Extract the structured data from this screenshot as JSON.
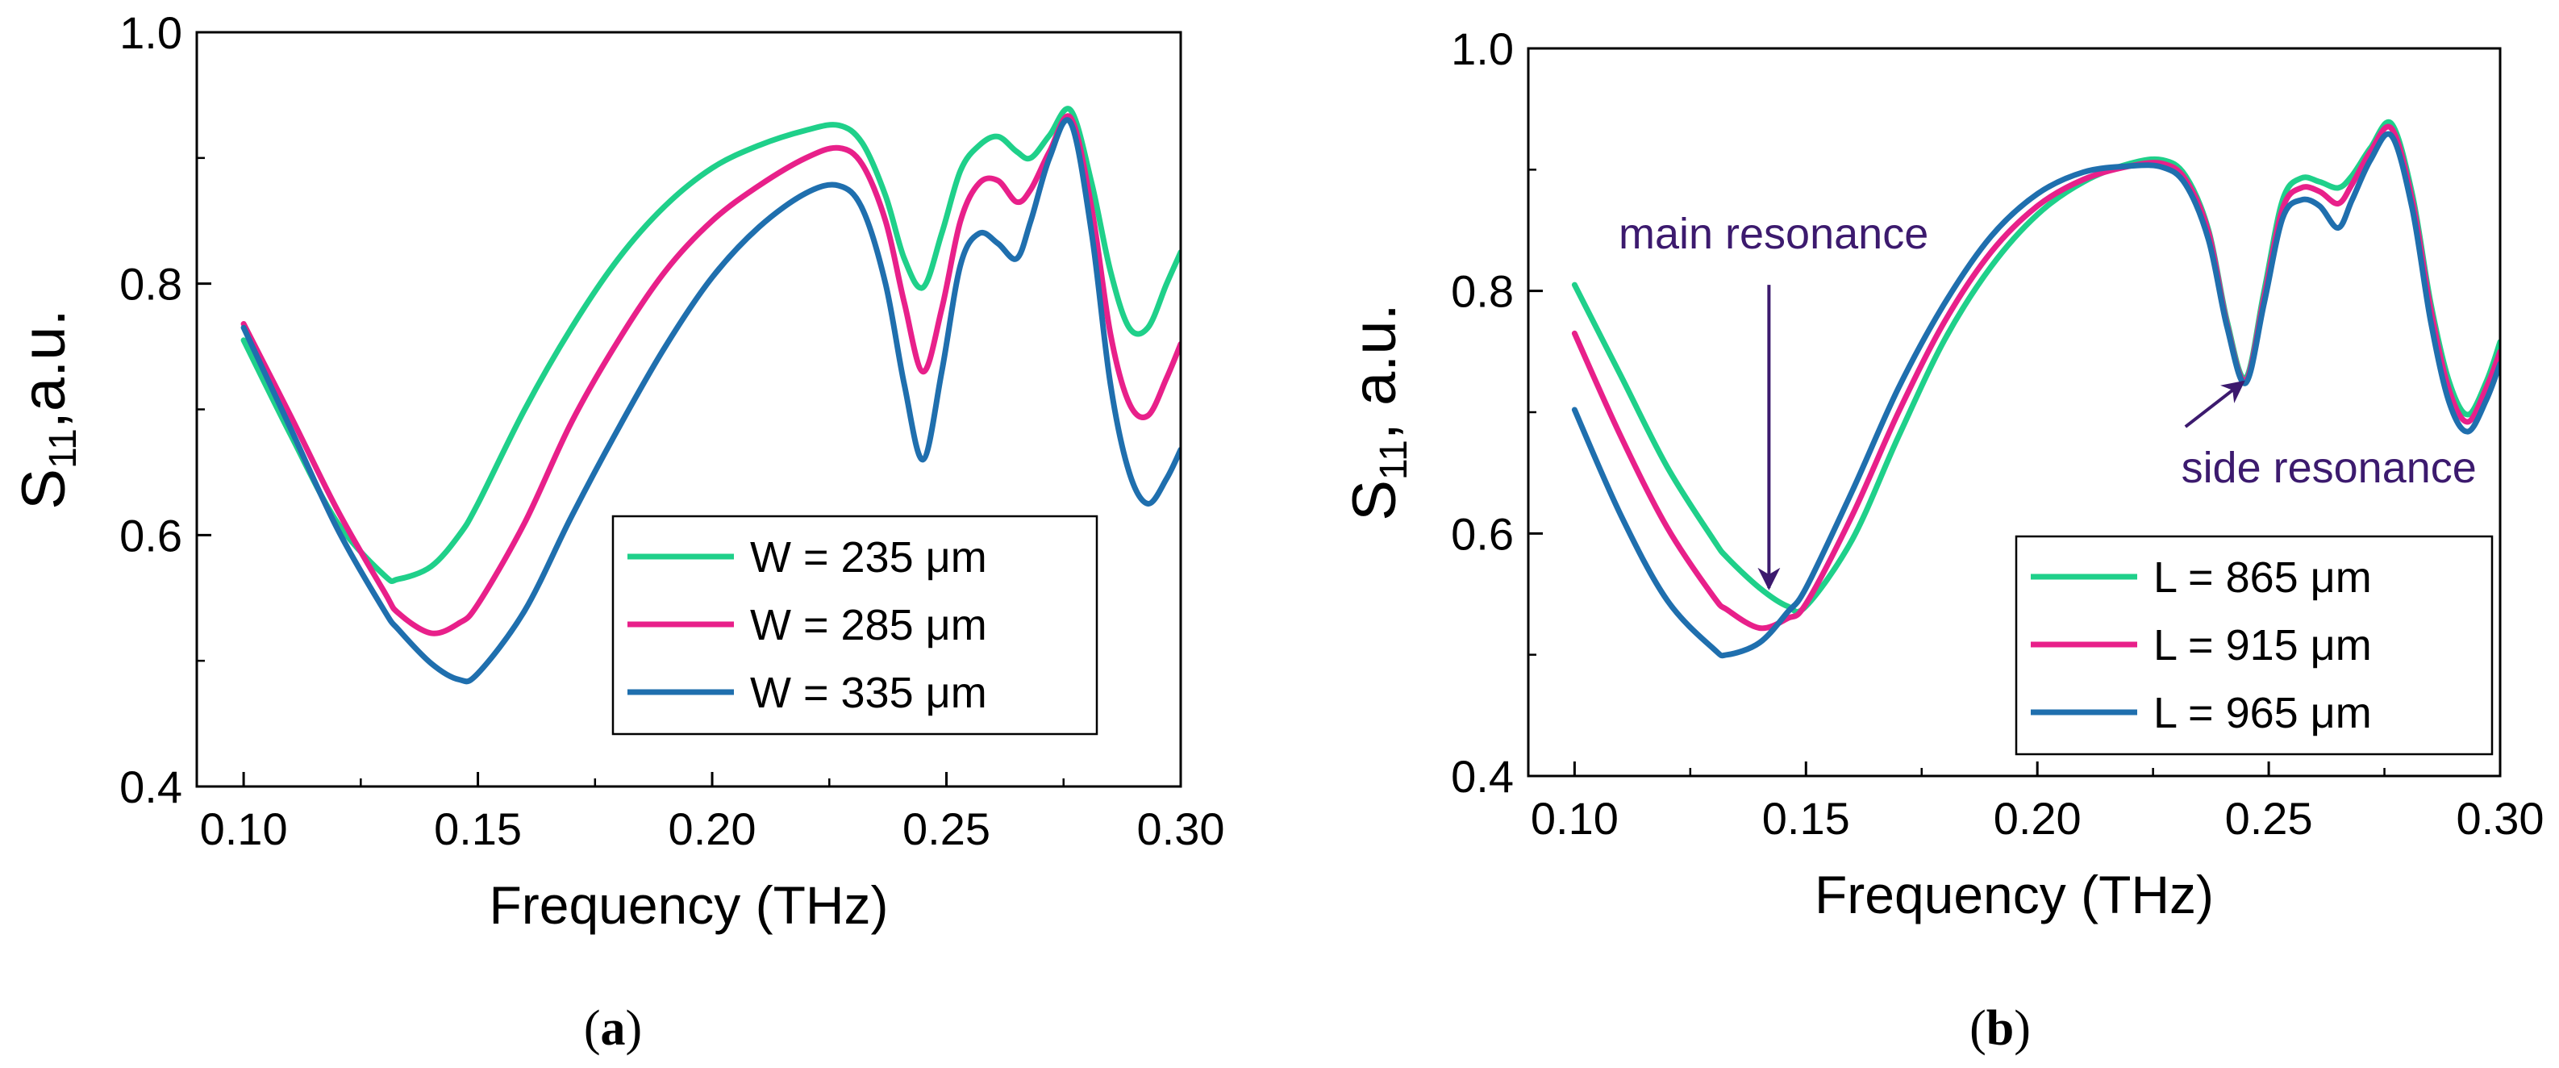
{
  "chart_data": [
    {
      "type": "line",
      "panel_label": "a",
      "xlabel": "Frequency (THz)",
      "ylabel_main": "S",
      "ylabel_sub": "11",
      "ylabel_suffix": ",a.u.",
      "xlim": [
        0.09,
        0.3
      ],
      "ylim": [
        0.4,
        1.0
      ],
      "xticks": [
        0.1,
        0.15,
        0.2,
        0.25,
        0.3
      ],
      "xtick_labels": [
        "0.10",
        "0.15",
        "0.20",
        "0.25",
        "0.30"
      ],
      "yticks": [
        0.4,
        0.6,
        0.8,
        1.0
      ],
      "ytick_labels": [
        "0.4",
        "0.6",
        "0.8",
        "1.0"
      ],
      "legend_position": "lower-right",
      "x": [
        0.1,
        0.11,
        0.12,
        0.13,
        0.133,
        0.14,
        0.146,
        0.15,
        0.16,
        0.17,
        0.18,
        0.19,
        0.2,
        0.21,
        0.22,
        0.227,
        0.232,
        0.237,
        0.241,
        0.245,
        0.249,
        0.253,
        0.257,
        0.261,
        0.265,
        0.268,
        0.272,
        0.2765,
        0.281,
        0.285,
        0.289,
        0.293,
        0.297,
        0.3
      ],
      "series": [
        {
          "name": "W = 235 μm",
          "color": "#1fd08a",
          "values": [
            0.755,
            0.68,
            0.61,
            0.568,
            0.565,
            0.575,
            0.6,
            0.625,
            0.7,
            0.765,
            0.82,
            0.862,
            0.892,
            0.91,
            0.922,
            0.926,
            0.912,
            0.87,
            0.82,
            0.797,
            0.84,
            0.89,
            0.91,
            0.917,
            0.905,
            0.9,
            0.918,
            0.938,
            0.88,
            0.81,
            0.765,
            0.765,
            0.8,
            0.825
          ]
        },
        {
          "name": "W = 285 μm",
          "color": "#e8208a",
          "values": [
            0.768,
            0.695,
            0.62,
            0.555,
            0.538,
            0.522,
            0.53,
            0.545,
            0.61,
            0.69,
            0.755,
            0.81,
            0.85,
            0.878,
            0.9,
            0.908,
            0.895,
            0.85,
            0.785,
            0.73,
            0.78,
            0.85,
            0.88,
            0.882,
            0.865,
            0.875,
            0.905,
            0.932,
            0.86,
            0.76,
            0.705,
            0.695,
            0.725,
            0.752
          ]
        },
        {
          "name": "W = 335 μm",
          "color": "#1f6fae",
          "values": [
            0.765,
            0.685,
            0.605,
            0.54,
            0.525,
            0.498,
            0.485,
            0.49,
            0.54,
            0.615,
            0.685,
            0.75,
            0.805,
            0.845,
            0.872,
            0.878,
            0.86,
            0.8,
            0.72,
            0.66,
            0.73,
            0.815,
            0.84,
            0.832,
            0.82,
            0.85,
            0.9,
            0.928,
            0.84,
            0.72,
            0.65,
            0.625,
            0.645,
            0.668
          ]
        }
      ]
    },
    {
      "type": "line",
      "panel_label": "b",
      "xlabel": "Frequency (THz)",
      "ylabel_main": "S",
      "ylabel_sub": "11",
      "ylabel_suffix": ", a.u.",
      "xlim": [
        0.09,
        0.3
      ],
      "ylim": [
        0.4,
        1.0
      ],
      "xticks": [
        0.1,
        0.15,
        0.2,
        0.25,
        0.3
      ],
      "xtick_labels": [
        "0.10",
        "0.15",
        "0.20",
        "0.25",
        "0.30"
      ],
      "yticks": [
        0.4,
        0.6,
        0.8,
        1.0
      ],
      "ytick_labels": [
        "0.4",
        "0.6",
        "0.8",
        "1.0"
      ],
      "legend_position": "lower-right",
      "annotations": [
        {
          "text": "main resonance",
          "arrow_from": [
            0.142,
            0.805
          ],
          "arrow_to": [
            0.142,
            0.555
          ],
          "text_at": [
            0.143,
            0.835
          ]
        },
        {
          "text": "side resonance",
          "arrow_from": [
            0.232,
            0.688
          ],
          "arrow_to": [
            0.2445,
            0.725
          ],
          "text_at": [
            0.263,
            0.642
          ]
        }
      ],
      "x": [
        0.1,
        0.11,
        0.12,
        0.13,
        0.133,
        0.14,
        0.146,
        0.15,
        0.16,
        0.17,
        0.18,
        0.19,
        0.2,
        0.21,
        0.22,
        0.227,
        0.232,
        0.237,
        0.241,
        0.245,
        0.249,
        0.253,
        0.257,
        0.261,
        0.265,
        0.268,
        0.272,
        0.2765,
        0.281,
        0.285,
        0.289,
        0.293,
        0.297,
        0.3
      ],
      "series": [
        {
          "name": "L = 865 μm",
          "color": "#1fd08a",
          "values": [
            0.805,
            0.73,
            0.655,
            0.595,
            0.58,
            0.555,
            0.54,
            0.54,
            0.595,
            0.68,
            0.76,
            0.82,
            0.863,
            0.89,
            0.905,
            0.908,
            0.895,
            0.85,
            0.775,
            0.728,
            0.8,
            0.875,
            0.893,
            0.89,
            0.885,
            0.895,
            0.918,
            0.938,
            0.88,
            0.79,
            0.725,
            0.698,
            0.725,
            0.758
          ]
        },
        {
          "name": "L = 915 μm",
          "color": "#e8208a",
          "values": [
            0.765,
            0.68,
            0.605,
            0.548,
            0.537,
            0.522,
            0.53,
            0.542,
            0.615,
            0.7,
            0.775,
            0.832,
            0.87,
            0.892,
            0.903,
            0.905,
            0.892,
            0.848,
            0.772,
            0.726,
            0.795,
            0.868,
            0.885,
            0.882,
            0.872,
            0.888,
            0.915,
            0.934,
            0.875,
            0.785,
            0.718,
            0.692,
            0.72,
            0.75
          ]
        },
        {
          "name": "L = 965 μm",
          "color": "#1f6fae",
          "values": [
            0.702,
            0.615,
            0.545,
            0.505,
            0.5,
            0.51,
            0.535,
            0.555,
            0.635,
            0.72,
            0.79,
            0.845,
            0.88,
            0.898,
            0.903,
            0.902,
            0.888,
            0.842,
            0.77,
            0.724,
            0.79,
            0.86,
            0.875,
            0.87,
            0.852,
            0.875,
            0.908,
            0.928,
            0.868,
            0.775,
            0.708,
            0.684,
            0.71,
            0.74
          ]
        }
      ]
    }
  ]
}
